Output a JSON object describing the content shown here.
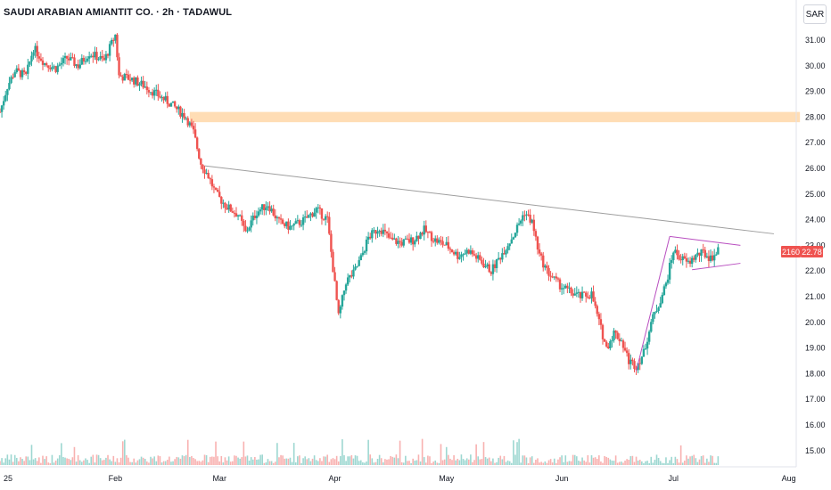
{
  "header": {
    "title": "SAUDI ARABIAN AMIANTIT CO. · 2h · TADAWUL",
    "currency": "SAR"
  },
  "colors": {
    "up": "#26a69a",
    "down": "#ef5350",
    "zone": "#ffd7a8",
    "trendline": "#9e9e9e",
    "pattern": "#b94fc0"
  },
  "price_marker": {
    "countdown": "2160",
    "price": "22.78"
  },
  "chart_data": {
    "type": "candlestick",
    "title": "SAUDI ARABIAN AMIANTIT CO. · 2h · TADAWUL",
    "ylim": [
      14.6,
      31.8
    ],
    "yticks": [
      "31.00",
      "30.00",
      "29.00",
      "28.00",
      "27.00",
      "26.00",
      "25.00",
      "24.00",
      "23.00",
      "22.00",
      "21.00",
      "20.00",
      "19.00",
      "18.00",
      "17.00",
      "16.00",
      "15.00"
    ],
    "xticks": [
      "25",
      "Feb",
      "Mar",
      "Apr",
      "May",
      "Jun",
      "Jul",
      "Aug"
    ],
    "x_range": [
      "2025-01-01",
      "2025-08-03"
    ],
    "series": [],
    "price_path": [
      [
        "2025-01-01",
        28.2
      ],
      [
        "2025-01-03",
        29.2
      ],
      [
        "2025-01-05",
        29.8
      ],
      [
        "2025-01-08",
        29.6
      ],
      [
        "2025-01-10",
        30.7
      ],
      [
        "2025-01-13",
        30.1
      ],
      [
        "2025-01-16",
        29.9
      ],
      [
        "2025-01-19",
        30.3
      ],
      [
        "2025-01-22",
        30.0
      ],
      [
        "2025-01-25",
        30.5
      ],
      [
        "2025-01-29",
        30.2
      ],
      [
        "2025-02-01",
        31.2
      ],
      [
        "2025-02-02",
        29.6
      ],
      [
        "2025-02-05",
        29.5
      ],
      [
        "2025-02-09",
        29.2
      ],
      [
        "2025-02-12",
        28.9
      ],
      [
        "2025-02-16",
        28.5
      ],
      [
        "2025-02-20",
        28.0
      ],
      [
        "2025-02-22",
        27.4
      ],
      [
        "2025-02-24",
        26.2
      ],
      [
        "2025-02-26",
        25.7
      ],
      [
        "2025-02-28",
        25.0
      ],
      [
        "2025-03-03",
        24.5
      ],
      [
        "2025-03-06",
        24.2
      ],
      [
        "2025-03-08",
        23.5
      ],
      [
        "2025-03-11",
        24.3
      ],
      [
        "2025-03-14",
        24.6
      ],
      [
        "2025-03-17",
        23.9
      ],
      [
        "2025-03-20",
        23.7
      ],
      [
        "2025-03-24",
        24.0
      ],
      [
        "2025-03-27",
        24.4
      ],
      [
        "2025-03-30",
        24.0
      ],
      [
        "2025-04-02",
        20.2
      ],
      [
        "2025-04-04",
        21.6
      ],
      [
        "2025-04-06",
        21.9
      ],
      [
        "2025-04-08",
        22.5
      ],
      [
        "2025-04-10",
        23.3
      ],
      [
        "2025-04-13",
        23.7
      ],
      [
        "2025-04-16",
        23.2
      ],
      [
        "2025-04-19",
        23.1
      ],
      [
        "2025-04-22",
        23.2
      ],
      [
        "2025-04-25",
        23.6
      ],
      [
        "2025-04-28",
        23.2
      ],
      [
        "2025-05-01",
        23.0
      ],
      [
        "2025-05-04",
        22.6
      ],
      [
        "2025-05-07",
        22.8
      ],
      [
        "2025-05-10",
        22.4
      ],
      [
        "2025-05-13",
        22.0
      ],
      [
        "2025-05-16",
        22.7
      ],
      [
        "2025-05-19",
        23.4
      ],
      [
        "2025-05-22",
        24.3
      ],
      [
        "2025-05-24",
        23.9
      ],
      [
        "2025-05-26",
        22.6
      ],
      [
        "2025-05-28",
        22.0
      ],
      [
        "2025-05-31",
        21.5
      ],
      [
        "2025-06-03",
        21.2
      ],
      [
        "2025-06-06",
        21.0
      ],
      [
        "2025-06-09",
        21.1
      ],
      [
        "2025-06-11",
        20.0
      ],
      [
        "2025-06-13",
        19.0
      ],
      [
        "2025-06-15",
        19.6
      ],
      [
        "2025-06-17",
        19.3
      ],
      [
        "2025-06-19",
        18.5
      ],
      [
        "2025-06-21",
        18.3
      ],
      [
        "2025-06-23",
        18.8
      ],
      [
        "2025-06-25",
        20.0
      ],
      [
        "2025-06-27",
        20.7
      ],
      [
        "2025-06-29",
        21.5
      ],
      [
        "2025-07-01",
        22.8
      ],
      [
        "2025-07-03",
        22.5
      ],
      [
        "2025-07-05",
        22.3
      ],
      [
        "2025-07-07",
        22.6
      ],
      [
        "2025-07-09",
        22.7
      ],
      [
        "2025-07-11",
        22.5
      ],
      [
        "2025-07-13",
        22.78
      ]
    ],
    "annotations": {
      "resistance_zone": {
        "y0": 27.8,
        "y1": 28.2,
        "x_start": "2025-02-21",
        "x_end": "2025-08-04"
      },
      "trendline": {
        "start": [
          "2025-02-25",
          26.1
        ],
        "end": [
          "2025-07-28",
          23.45
        ]
      },
      "triangle_upper": {
        "start": [
          "2025-06-30",
          23.35
        ],
        "end": [
          "2025-07-19",
          23.0
        ]
      },
      "triangle_lower": {
        "start": [
          "2025-07-06",
          22.05
        ],
        "end": [
          "2025-07-19",
          22.3
        ]
      },
      "pole": {
        "start": [
          "2025-06-21",
          18.1
        ],
        "end": [
          "2025-06-30",
          23.35
        ]
      }
    },
    "grid": false,
    "legend": "none"
  }
}
